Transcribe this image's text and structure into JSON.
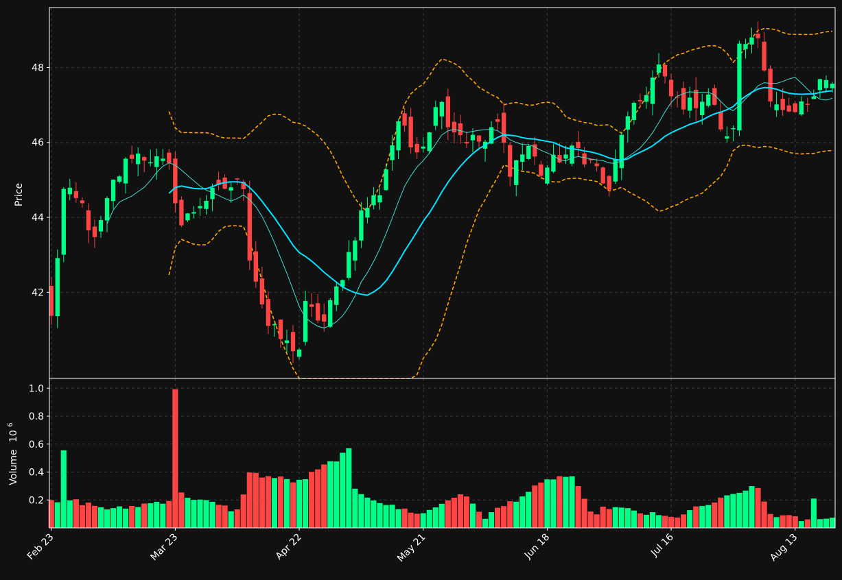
{
  "chart_data": {
    "type": "candlestick",
    "price_panel": {
      "ylabel": "Price",
      "ylim": [
        39.7,
        49.6
      ],
      "yticks": [
        42,
        44,
        46,
        48
      ],
      "grid": true
    },
    "volume_panel": {
      "ylabel": "Volume",
      "ylabel_exponent": "6",
      "ylim": [
        0,
        1.07
      ],
      "yticks": [
        "0.2",
        "0.4",
        "0.6",
        "0.8",
        "1.0"
      ],
      "grid": true
    },
    "x_tick_labels": [
      "Feb 23",
      "Mar 23",
      "Apr 22",
      "May 21",
      "Jun 18",
      "Jul 16",
      "Aug 13"
    ],
    "x_tick_indices": [
      0,
      20,
      40,
      60,
      80,
      100,
      120
    ],
    "n_bars": 127,
    "colors": {
      "up": "#00ff88",
      "down": "#ff4444",
      "moving_average_long": "#00e5ff",
      "moving_average_short": "#40e0d0",
      "bollinger_bands": "#ffa500",
      "background": "#111111",
      "grid": "#3a3a3a",
      "axis": "#ffffff"
    },
    "series": [
      {
        "indicator": "candles",
        "anchor_close": [
          [
            0,
            41.3
          ],
          [
            2,
            44.7
          ],
          [
            5,
            44.3
          ],
          [
            7,
            43.3
          ],
          [
            10,
            44.9
          ],
          [
            13,
            45.7
          ],
          [
            16,
            45.6
          ],
          [
            19,
            45.3
          ],
          [
            21,
            43.8
          ],
          [
            24,
            44.4
          ],
          [
            28,
            44.8
          ],
          [
            31,
            44.9
          ],
          [
            32,
            43.0
          ],
          [
            35,
            41.1
          ],
          [
            38,
            40.6
          ],
          [
            40,
            40.5
          ],
          [
            41,
            41.6
          ],
          [
            44,
            41.2
          ],
          [
            47,
            42.5
          ],
          [
            50,
            44.1
          ],
          [
            53,
            44.7
          ],
          [
            56,
            46.6
          ],
          [
            58,
            45.9
          ],
          [
            60,
            46.0
          ],
          [
            63,
            47.3
          ],
          [
            64,
            46.5
          ],
          [
            67,
            46.1
          ],
          [
            70,
            46.0
          ],
          [
            72,
            46.5
          ],
          [
            74,
            45.3
          ],
          [
            77,
            45.9
          ],
          [
            79,
            45.2
          ],
          [
            82,
            45.6
          ],
          [
            85,
            45.8
          ],
          [
            88,
            45.3
          ],
          [
            90,
            44.6
          ],
          [
            92,
            46.3
          ],
          [
            95,
            47.1
          ],
          [
            98,
            48.0
          ],
          [
            100,
            47.2
          ],
          [
            103,
            47.0
          ],
          [
            106,
            47.3
          ],
          [
            109,
            46.0
          ],
          [
            110,
            46.5
          ],
          [
            111,
            48.5
          ],
          [
            114,
            49.0
          ],
          [
            116,
            47.0
          ],
          [
            119,
            46.6
          ],
          [
            122,
            47.1
          ],
          [
            124,
            47.8
          ],
          [
            126,
            47.5
          ]
        ]
      },
      {
        "indicator": "moving_average_long",
        "start_index": 19
      },
      {
        "indicator": "moving_average_short",
        "start_index": 9
      },
      {
        "indicator": "bollinger_bands",
        "start_index": 19
      }
    ],
    "volume_anchors": [
      [
        0,
        0.18
      ],
      [
        1,
        0.18
      ],
      [
        2,
        0.54
      ],
      [
        3,
        0.2
      ],
      [
        10,
        0.13
      ],
      [
        19,
        0.2
      ],
      [
        20,
        1.0
      ],
      [
        21,
        0.24
      ],
      [
        30,
        0.12
      ],
      [
        32,
        0.39
      ],
      [
        40,
        0.33
      ],
      [
        48,
        0.55
      ],
      [
        49,
        0.27
      ],
      [
        55,
        0.15
      ],
      [
        60,
        0.1
      ],
      [
        66,
        0.25
      ],
      [
        70,
        0.08
      ],
      [
        81,
        0.36
      ],
      [
        84,
        0.37
      ],
      [
        87,
        0.1
      ],
      [
        90,
        0.15
      ],
      [
        100,
        0.07
      ],
      [
        111,
        0.25
      ],
      [
        112,
        0.28
      ],
      [
        114,
        0.28
      ],
      [
        116,
        0.1
      ],
      [
        122,
        0.05
      ],
      [
        123,
        0.2
      ],
      [
        124,
        0.08
      ],
      [
        126,
        0.07
      ]
    ]
  }
}
